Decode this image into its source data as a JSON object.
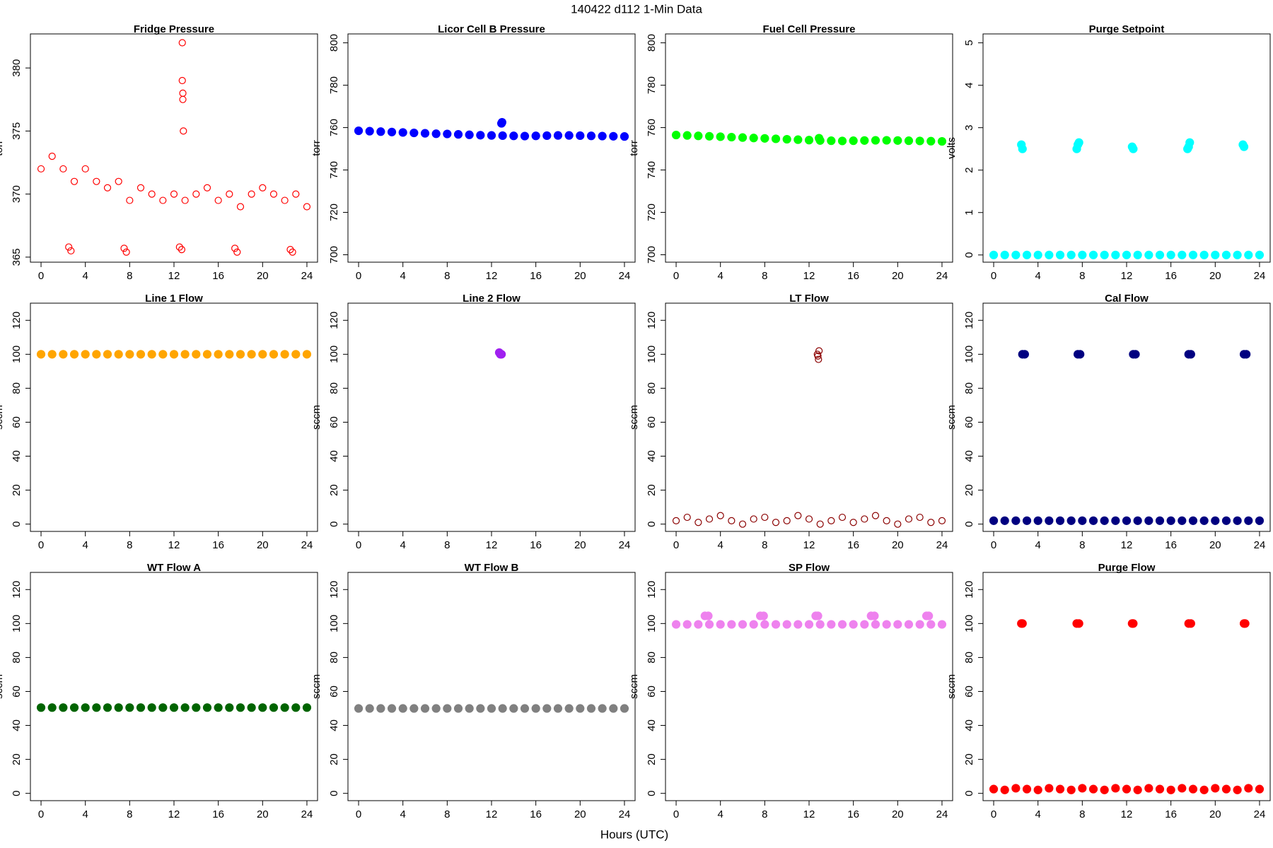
{
  "figure": {
    "title": "140422   d112   1-Min Data",
    "xlabel": "Hours (UTC)"
  },
  "chart_data": [
    {
      "type": "scatter",
      "title": "Fridge Pressure",
      "ylabel": "torr",
      "color": "#ff0000",
      "marker": "open",
      "xlim": [
        -0.96,
        24.96
      ],
      "xticks": [
        0,
        4,
        8,
        12,
        16,
        20,
        24
      ],
      "ylim": [
        364.6,
        382.7
      ],
      "yticks": [
        365,
        370,
        375,
        380
      ],
      "x": [
        0,
        1,
        2,
        3,
        4,
        5,
        6,
        7,
        8,
        9,
        10,
        11,
        12,
        13,
        14,
        15,
        16,
        17,
        18,
        19,
        20,
        21,
        22,
        23,
        24,
        2.5,
        2.7,
        7.5,
        7.7,
        12.5,
        12.7,
        17.5,
        17.7,
        22.5,
        22.7,
        12.75,
        12.75,
        12.8,
        12.8,
        12.85
      ],
      "values": [
        372,
        373,
        372,
        371,
        372,
        371,
        370.5,
        371,
        369.5,
        370.5,
        370,
        369.5,
        370,
        369.5,
        370,
        370.5,
        369.5,
        370,
        369,
        370,
        370.5,
        370,
        369.5,
        370,
        369,
        365.8,
        365.5,
        365.7,
        365.4,
        365.8,
        365.6,
        365.7,
        365.4,
        365.6,
        365.4,
        382,
        379,
        378,
        377.5,
        375
      ]
    },
    {
      "type": "scatter",
      "title": "Licor Cell B Pressure",
      "ylabel": "torr",
      "color": "#0000ff",
      "marker": "filled",
      "xlim": [
        -0.96,
        24.96
      ],
      "xticks": [
        0,
        4,
        8,
        12,
        16,
        20,
        24
      ],
      "ylim": [
        696.5,
        804.2
      ],
      "yticks": [
        700,
        720,
        740,
        760,
        780,
        800
      ],
      "x": [
        0,
        1,
        2,
        3,
        4,
        5,
        6,
        7,
        8,
        9,
        10,
        11,
        12,
        13,
        14,
        15,
        16,
        17,
        18,
        19,
        20,
        21,
        22,
        23,
        24,
        12.9,
        12.95
      ],
      "values": [
        758.5,
        758.3,
        758.1,
        757.9,
        757.7,
        757.5,
        757.3,
        757.1,
        757,
        756.8,
        756.6,
        756.4,
        756.3,
        756.2,
        756.1,
        756,
        756.1,
        756.2,
        756.3,
        756.3,
        756.2,
        756.1,
        756,
        755.9,
        755.8,
        762,
        762.5
      ]
    },
    {
      "type": "scatter",
      "title": "Fuel Cell Pressure",
      "ylabel": "torr",
      "color": "#00ff00",
      "marker": "filled",
      "xlim": [
        -0.96,
        24.96
      ],
      "xticks": [
        0,
        4,
        8,
        12,
        16,
        20,
        24
      ],
      "ylim": [
        696.5,
        804.2
      ],
      "yticks": [
        700,
        720,
        740,
        760,
        780,
        800
      ],
      "x": [
        0,
        1,
        2,
        3,
        4,
        5,
        6,
        7,
        8,
        9,
        10,
        11,
        12,
        13,
        14,
        15,
        16,
        17,
        18,
        19,
        20,
        21,
        22,
        23,
        24,
        12.9
      ],
      "values": [
        756.5,
        756.3,
        756.1,
        755.9,
        755.7,
        755.5,
        755.3,
        755.1,
        754.9,
        754.7,
        754.5,
        754.3,
        754.1,
        753.9,
        753.8,
        753.7,
        753.8,
        753.9,
        754,
        754,
        753.9,
        753.8,
        753.7,
        753.6,
        753.5,
        755
      ]
    },
    {
      "type": "scatter",
      "title": "Purge Setpoint",
      "ylabel": "volts",
      "color": "#00ffff",
      "marker": "filled",
      "xlim": [
        -0.96,
        24.96
      ],
      "xticks": [
        0,
        4,
        8,
        12,
        16,
        20,
        24
      ],
      "ylim": [
        -0.17,
        5.21
      ],
      "yticks": [
        0,
        1,
        2,
        3,
        4,
        5
      ],
      "x": [
        0,
        1,
        2,
        3,
        4,
        5,
        6,
        7,
        8,
        9,
        10,
        11,
        12,
        13,
        14,
        15,
        16,
        17,
        18,
        19,
        20,
        21,
        22,
        23,
        24,
        2.5,
        2.6,
        7.5,
        7.6,
        7.7,
        12.5,
        12.6,
        17.5,
        17.6,
        17.7,
        22.5,
        22.6
      ],
      "values": [
        0,
        0,
        0,
        0,
        0,
        0,
        0,
        0,
        0,
        0,
        0,
        0,
        0,
        0,
        0,
        0,
        0,
        0,
        0,
        0,
        0,
        0,
        0,
        0,
        0,
        2.6,
        2.5,
        2.5,
        2.6,
        2.65,
        2.55,
        2.5,
        2.5,
        2.55,
        2.65,
        2.6,
        2.55
      ]
    },
    {
      "type": "scatter",
      "title": "Line 1 Flow",
      "ylabel": "sccm",
      "color": "#ffa500",
      "marker": "filled",
      "xlim": [
        -0.96,
        24.96
      ],
      "xticks": [
        0,
        4,
        8,
        12,
        16,
        20,
        24
      ],
      "ylim": [
        -4.3,
        130.1
      ],
      "yticks": [
        0,
        20,
        40,
        60,
        80,
        100,
        120
      ],
      "x": [
        0,
        1,
        2,
        3,
        4,
        5,
        6,
        7,
        8,
        9,
        10,
        11,
        12,
        13,
        14,
        15,
        16,
        17,
        18,
        19,
        20,
        21,
        22,
        23,
        24
      ],
      "values": [
        100,
        100,
        100,
        100,
        100,
        100,
        100,
        100,
        100,
        100,
        100,
        100,
        100,
        100,
        100,
        100,
        100,
        100,
        100,
        100,
        100,
        100,
        100,
        100,
        100
      ]
    },
    {
      "type": "scatter",
      "title": "Line 2 Flow",
      "ylabel": "sccm",
      "color": "#a020f0",
      "marker": "filled",
      "xlim": [
        -0.96,
        24.96
      ],
      "xticks": [
        0,
        4,
        8,
        12,
        16,
        20,
        24
      ],
      "ylim": [
        -4.3,
        130.1
      ],
      "yticks": [
        0,
        20,
        40,
        60,
        80,
        100,
        120
      ],
      "x": [
        12.7,
        12.8,
        12.9
      ],
      "values": [
        101,
        100,
        100
      ]
    },
    {
      "type": "scatter",
      "title": "LT Flow",
      "ylabel": "sccm",
      "color": "#8b0000",
      "marker": "open",
      "xlim": [
        -0.96,
        24.96
      ],
      "xticks": [
        0,
        4,
        8,
        12,
        16,
        20,
        24
      ],
      "ylim": [
        -4.3,
        130.1
      ],
      "yticks": [
        0,
        20,
        40,
        60,
        80,
        100,
        120
      ],
      "x": [
        0,
        1,
        2,
        3,
        4,
        5,
        6,
        7,
        8,
        9,
        10,
        11,
        12,
        13,
        14,
        15,
        16,
        17,
        18,
        19,
        20,
        21,
        22,
        23,
        24,
        12.75,
        12.8,
        12.85,
        12.9
      ],
      "values": [
        2,
        4,
        1,
        3,
        5,
        2,
        0,
        3,
        4,
        1,
        2,
        5,
        3,
        0,
        2,
        4,
        1,
        3,
        5,
        2,
        0,
        3,
        4,
        1,
        2,
        100,
        99,
        97,
        102
      ]
    },
    {
      "type": "scatter",
      "title": "Cal Flow",
      "ylabel": "sccm",
      "color": "#000080",
      "marker": "filled",
      "xlim": [
        -0.96,
        24.96
      ],
      "xticks": [
        0,
        4,
        8,
        12,
        16,
        20,
        24
      ],
      "ylim": [
        -4.3,
        130.1
      ],
      "yticks": [
        0,
        20,
        40,
        60,
        80,
        100,
        120
      ],
      "x": [
        0,
        1,
        2,
        3,
        4,
        5,
        6,
        7,
        8,
        9,
        10,
        11,
        12,
        13,
        14,
        15,
        16,
        17,
        18,
        19,
        20,
        21,
        22,
        23,
        24,
        2.6,
        2.8,
        7.6,
        7.8,
        12.6,
        12.8,
        17.6,
        17.8,
        22.6,
        22.8
      ],
      "values": [
        2,
        2,
        2,
        2,
        2,
        2,
        2,
        2,
        2,
        2,
        2,
        2,
        2,
        2,
        2,
        2,
        2,
        2,
        2,
        2,
        2,
        2,
        2,
        2,
        2,
        100,
        100,
        100,
        100,
        100,
        100,
        100,
        100,
        100,
        100
      ]
    },
    {
      "type": "scatter",
      "title": "WT Flow A",
      "ylabel": "sccm",
      "color": "#006400",
      "marker": "filled",
      "xlim": [
        -0.96,
        24.96
      ],
      "xticks": [
        0,
        4,
        8,
        12,
        16,
        20,
        24
      ],
      "ylim": [
        -4.3,
        130.1
      ],
      "yticks": [
        0,
        20,
        40,
        60,
        80,
        100,
        120
      ],
      "x": [
        0,
        1,
        2,
        3,
        4,
        5,
        6,
        7,
        8,
        9,
        10,
        11,
        12,
        13,
        14,
        15,
        16,
        17,
        18,
        19,
        20,
        21,
        22,
        23,
        24
      ],
      "values": [
        50.5,
        50.5,
        50.5,
        50.5,
        50.5,
        50.5,
        50.5,
        50.5,
        50.5,
        50.5,
        50.5,
        50.5,
        50.5,
        50.5,
        50.5,
        50.5,
        50.5,
        50.5,
        50.5,
        50.5,
        50.5,
        50.5,
        50.5,
        50.5,
        50.5
      ]
    },
    {
      "type": "scatter",
      "title": "WT Flow B",
      "ylabel": "sccm",
      "color": "#808080",
      "marker": "filled",
      "xlim": [
        -0.96,
        24.96
      ],
      "xticks": [
        0,
        4,
        8,
        12,
        16,
        20,
        24
      ],
      "ylim": [
        -4.3,
        130.1
      ],
      "yticks": [
        0,
        20,
        40,
        60,
        80,
        100,
        120
      ],
      "x": [
        0,
        1,
        2,
        3,
        4,
        5,
        6,
        7,
        8,
        9,
        10,
        11,
        12,
        13,
        14,
        15,
        16,
        17,
        18,
        19,
        20,
        21,
        22,
        23,
        24
      ],
      "values": [
        50,
        50,
        50,
        50,
        50,
        50,
        50,
        50,
        50,
        50,
        50,
        50,
        50,
        50,
        50,
        50,
        50,
        50,
        50,
        50,
        50,
        50,
        50,
        50,
        50
      ]
    },
    {
      "type": "scatter",
      "title": "SP Flow",
      "ylabel": "sccm",
      "color": "#ee82ee",
      "marker": "filled",
      "xlim": [
        -0.96,
        24.96
      ],
      "xticks": [
        0,
        4,
        8,
        12,
        16,
        20,
        24
      ],
      "ylim": [
        -4.3,
        130.1
      ],
      "yticks": [
        0,
        20,
        40,
        60,
        80,
        100,
        120
      ],
      "x": [
        0,
        1,
        2,
        3,
        4,
        5,
        6,
        7,
        8,
        9,
        10,
        11,
        12,
        13,
        14,
        15,
        16,
        17,
        18,
        19,
        20,
        21,
        22,
        23,
        24,
        2.6,
        2.9,
        7.6,
        7.9,
        12.6,
        12.8,
        17.6,
        17.9,
        22.6,
        22.8
      ],
      "values": [
        99.5,
        99.5,
        99.5,
        99.5,
        99.5,
        99.5,
        99.5,
        99.5,
        99.5,
        99.5,
        99.5,
        99.5,
        99.5,
        99.5,
        99.5,
        99.5,
        99.5,
        99.5,
        99.5,
        99.5,
        99.5,
        99.5,
        99.5,
        99.5,
        99.5,
        104.5,
        104.5,
        104.5,
        104.5,
        104.5,
        104.5,
        104.5,
        104.5,
        104.5,
        104.5
      ]
    },
    {
      "type": "scatter",
      "title": "Purge Flow",
      "ylabel": "sccm",
      "color": "#ff0000",
      "marker": "filled",
      "xlim": [
        -0.96,
        24.96
      ],
      "xticks": [
        0,
        4,
        8,
        12,
        16,
        20,
        24
      ],
      "ylim": [
        -4.3,
        130.1
      ],
      "yticks": [
        0,
        20,
        40,
        60,
        80,
        100,
        120
      ],
      "x": [
        0,
        1,
        2,
        3,
        4,
        5,
        6,
        7,
        8,
        9,
        10,
        11,
        12,
        13,
        14,
        15,
        16,
        17,
        18,
        19,
        20,
        21,
        22,
        23,
        24,
        2.5,
        2.6,
        7.5,
        7.7,
        12.5,
        12.6,
        17.6,
        17.8,
        22.6,
        22.7
      ],
      "values": [
        2.5,
        2,
        3,
        2.5,
        2,
        3,
        2.5,
        2,
        3,
        2.5,
        2,
        3,
        2.5,
        2,
        3,
        2.5,
        2,
        3,
        2.5,
        2,
        3,
        2.5,
        2,
        3,
        2.5,
        100,
        100,
        100,
        100,
        100,
        100,
        100,
        100,
        100,
        100
      ]
    }
  ]
}
